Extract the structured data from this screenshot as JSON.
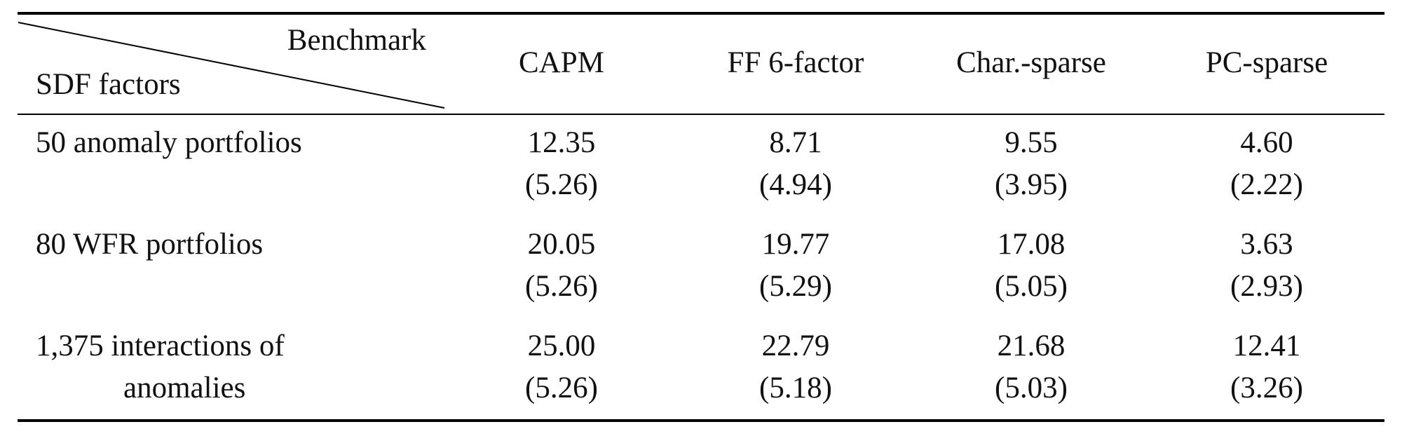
{
  "table": {
    "header": {
      "corner_top": "Benchmark",
      "corner_bottom": "SDF factors",
      "columns": [
        "CAPM",
        "FF 6-factor",
        "Char.-sparse",
        "PC-sparse"
      ]
    },
    "rows": [
      {
        "label": [
          "50 anomaly portfolios"
        ],
        "values": [
          "12.35",
          "8.71",
          "9.55",
          "4.60"
        ],
        "errors": [
          "(5.26)",
          "(4.94)",
          "(3.95)",
          "(2.22)"
        ]
      },
      {
        "label": [
          "80 WFR portfolios"
        ],
        "values": [
          "20.05",
          "19.77",
          "17.08",
          "3.63"
        ],
        "errors": [
          "(5.26)",
          "(5.29)",
          "(5.05)",
          "(2.93)"
        ]
      },
      {
        "label": [
          "1,375 interactions of",
          "anomalies"
        ],
        "values": [
          "25.00",
          "22.79",
          "21.68",
          "12.41"
        ],
        "errors": [
          "(5.26)",
          "(5.18)",
          "(5.03)",
          "(3.26)"
        ]
      }
    ]
  }
}
